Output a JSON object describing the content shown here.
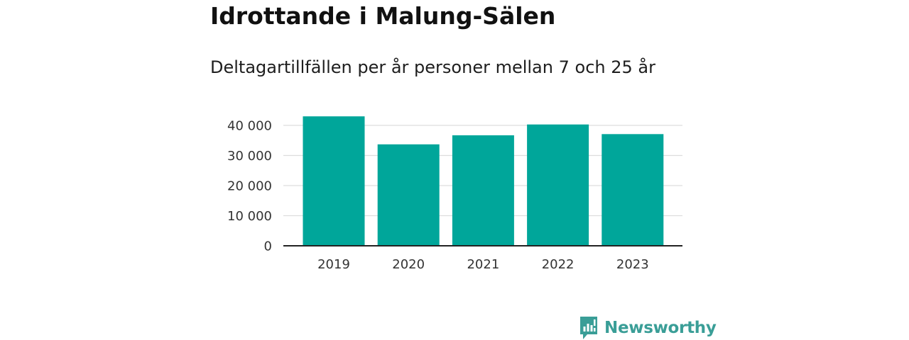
{
  "title": "Idrottande i Malung-Sälen",
  "subtitle": "Deltagartillfällen per år personer mellan 7 och 25 år",
  "brand": {
    "name": "Newsworthy",
    "logo_icon": "newsworthy-logo-icon",
    "color": "#3a9e97"
  },
  "chart_data": {
    "type": "bar",
    "title": "Idrottande i Malung-Sälen",
    "subtitle": "Deltagartillfällen per år personer mellan 7 och 25 år",
    "categories": [
      "2019",
      "2020",
      "2021",
      "2022",
      "2023"
    ],
    "values": [
      43000,
      33700,
      36700,
      40300,
      37100
    ],
    "xlabel": "",
    "ylabel": "",
    "ylim": [
      0,
      45000
    ],
    "yticks": [
      0,
      10000,
      20000,
      30000,
      40000
    ],
    "ytick_labels": [
      "0",
      "10 000",
      "20 000",
      "30 000",
      "40 000"
    ],
    "grid": true,
    "legend": "none",
    "bar_color": "#00a69a"
  }
}
